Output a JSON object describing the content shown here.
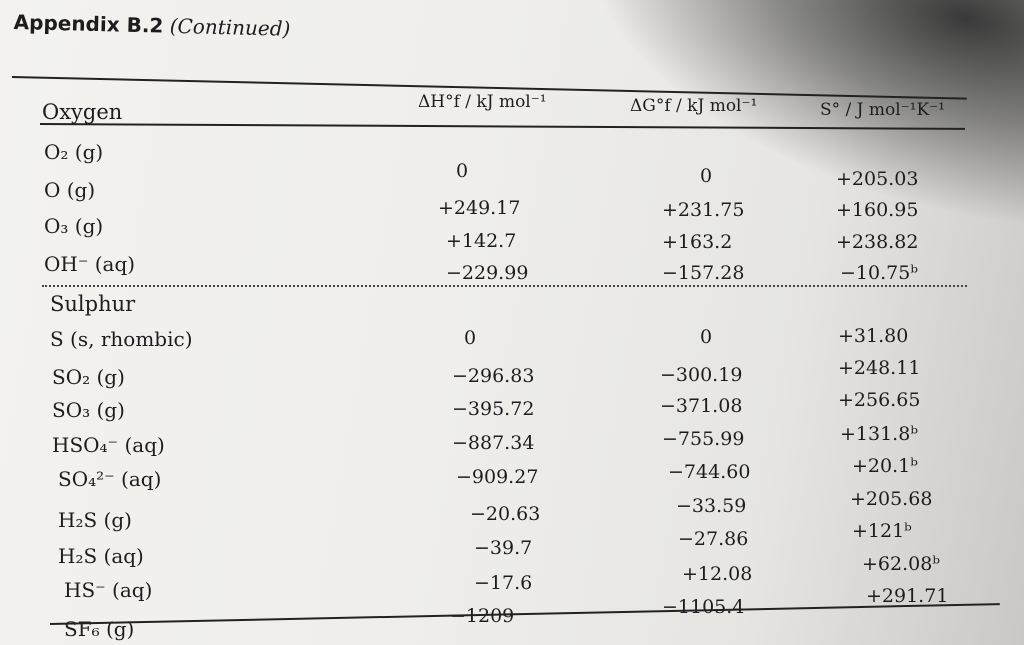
{
  "title": {
    "prefix": "Appendix B.2",
    "suffix": "(Continued)"
  },
  "headers": {
    "dh": "ΔH°f / kJ mol⁻¹",
    "dg": "ΔG°f / kJ mol⁻¹",
    "s": "S° / J mol⁻¹K⁻¹"
  },
  "sections": [
    {
      "name": "Oxygen",
      "rows": [
        {
          "species": "O₂ (g)",
          "dh": "0",
          "dg": "0",
          "s": "+205.03"
        },
        {
          "species": "O (g)",
          "dh": "+249.17",
          "dg": "+231.75",
          "s": "+160.95"
        },
        {
          "species": "O₃ (g)",
          "dh": "+142.7",
          "dg": "+163.2",
          "s": "+238.82"
        },
        {
          "species": "OH⁻ (aq)",
          "dh": "−229.99",
          "dg": "−157.28",
          "s": "−10.75ᵇ"
        }
      ]
    },
    {
      "name": "Sulphur",
      "rows": [
        {
          "species": "S (s, rhombic)",
          "dh": "0",
          "dg": "0",
          "s": "+31.80"
        },
        {
          "species": "SO₂ (g)",
          "dh": "−296.83",
          "dg": "−300.19",
          "s": "+248.11"
        },
        {
          "species": "SO₃ (g)",
          "dh": "−395.72",
          "dg": "−371.08",
          "s": "+256.65"
        },
        {
          "species": "HSO₄⁻ (aq)",
          "dh": "−887.34",
          "dg": "−755.99",
          "s": "+131.8ᵇ"
        },
        {
          "species": "SO₄²⁻ (aq)",
          "dh": "−909.27",
          "dg": "−744.60",
          "s": "+20.1ᵇ"
        },
        {
          "species": "H₂S (g)",
          "dh": "−20.63",
          "dg": "−33.59",
          "s": "+205.68"
        },
        {
          "species": "H₂S (aq)",
          "dh": "−39.7",
          "dg": "−27.86",
          "s": "+121ᵇ"
        },
        {
          "species": "HS⁻ (aq)",
          "dh": "−17.6",
          "dg": "+12.08",
          "s": "+62.08ᵇ"
        },
        {
          "species": "SF₆ (g)",
          "dh": "−1209",
          "dg": "−1105.4",
          "s": "+291.71"
        }
      ]
    }
  ]
}
